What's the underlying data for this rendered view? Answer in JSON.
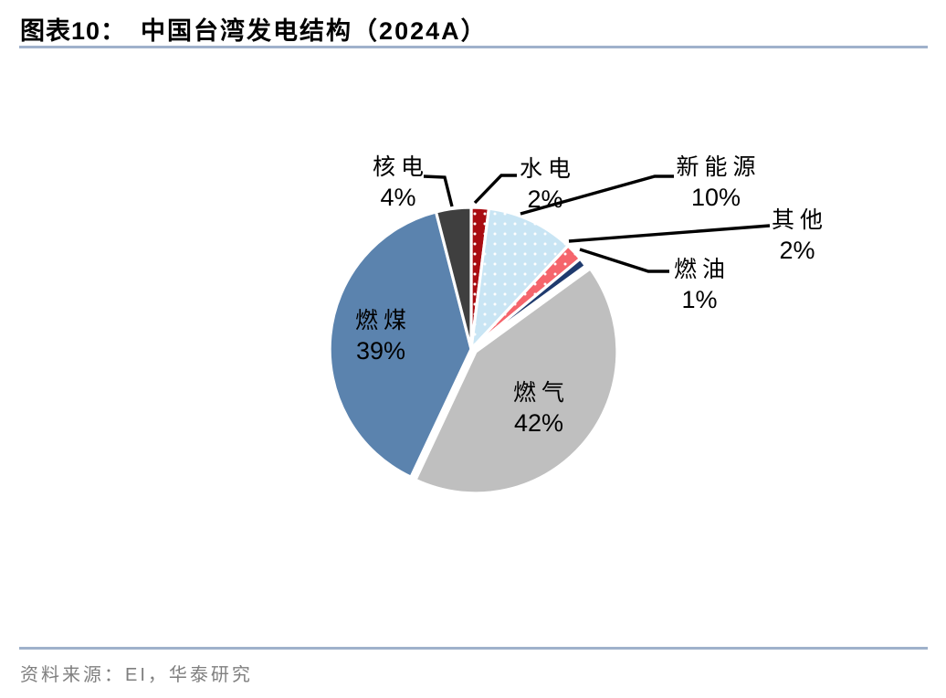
{
  "title": {
    "prefix": "图表10：",
    "text": "中国台湾发电结构（2024A）"
  },
  "source": {
    "text": "资料来源：EI，华泰研究"
  },
  "colors": {
    "rule": "#9FB1CB",
    "leader_line": "#000000",
    "source_text": "#7F7F7F",
    "slice_border": "#FFFFFF"
  },
  "chart_data": {
    "type": "pie",
    "title": "中国台湾发电结构（2024A）",
    "unit": "%",
    "start_angle_deg": 0,
    "direction": "clockwise",
    "legend": "none",
    "dot_color": "#FFFFFF",
    "slices": [
      {
        "id": "hydro",
        "label": "水电",
        "value": 2,
        "color": "#A90D12",
        "dots": true,
        "label_style": "callout"
      },
      {
        "id": "renewables",
        "label": "新能源",
        "value": 10,
        "color": "#C9E5F4",
        "dots": true,
        "label_style": "callout"
      },
      {
        "id": "other",
        "label": "其他",
        "value": 2,
        "color": "#F5656C",
        "dots": true,
        "label_style": "callout"
      },
      {
        "id": "fuel-oil",
        "label": "燃油",
        "value": 1,
        "color": "#1F3A6E",
        "dots": false,
        "label_style": "callout"
      },
      {
        "id": "gas",
        "label": "燃气",
        "value": 42,
        "color": "#BFBFBF",
        "dots": false,
        "label_style": "inside"
      },
      {
        "id": "coal",
        "label": "燃煤",
        "value": 39,
        "color": "#5B83AE",
        "dots": false,
        "label_style": "inside"
      },
      {
        "id": "nuclear",
        "label": "核电",
        "value": 4,
        "color": "#3F3F3F",
        "dots": false,
        "label_style": "callout"
      }
    ]
  }
}
